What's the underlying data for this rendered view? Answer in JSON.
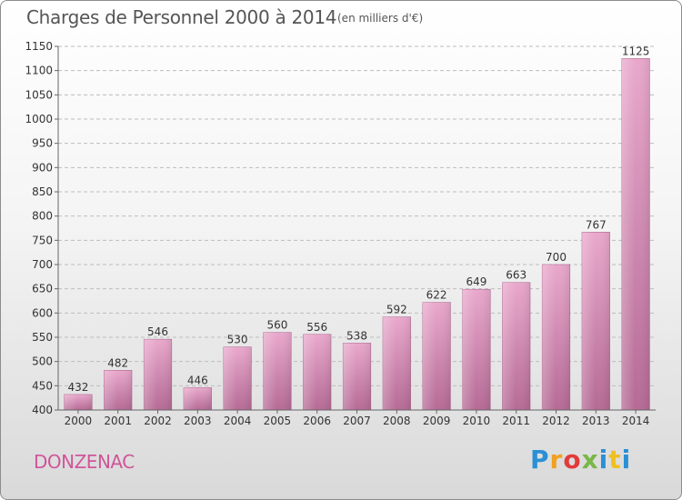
{
  "header": {
    "title": "Charges de Personnel 2000 à 2014",
    "subtitle": "(en milliers d'€)"
  },
  "location": "DONZENAC",
  "brand": {
    "letters": [
      "P",
      "r",
      "o",
      "x",
      "i",
      "t",
      "i"
    ],
    "colors": [
      "#2b8fd6",
      "#f0a020",
      "#e23b3b",
      "#7ab648",
      "#2b8fd6",
      "#f0c020",
      "#2b8fd6"
    ]
  },
  "chart_data": {
    "type": "bar",
    "title": "Charges de Personnel 2000 à 2014",
    "subtitle": "(en milliers d'€)",
    "categories": [
      "2000",
      "2001",
      "2002",
      "2003",
      "2004",
      "2005",
      "2006",
      "2007",
      "2008",
      "2009",
      "2010",
      "2011",
      "2012",
      "2013",
      "2014"
    ],
    "values": [
      432,
      482,
      546,
      446,
      530,
      560,
      556,
      538,
      592,
      622,
      649,
      663,
      700,
      767,
      1125
    ],
    "ylim": [
      400,
      1150
    ],
    "yticks": [
      400,
      450,
      500,
      550,
      600,
      650,
      700,
      750,
      800,
      850,
      900,
      950,
      1000,
      1050,
      1100,
      1150
    ],
    "grid": true,
    "bar_color": "#d98cb8",
    "xlabel": "",
    "ylabel": ""
  }
}
